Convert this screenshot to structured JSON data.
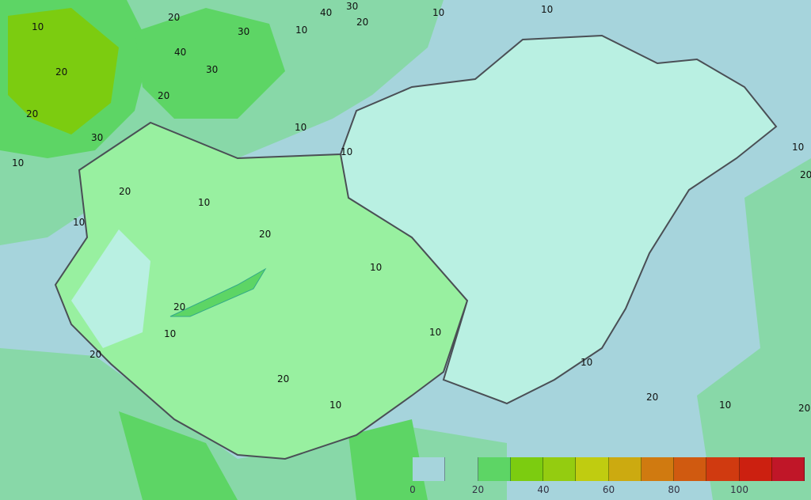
{
  "map": {
    "colors": {
      "background": "#a6d4dc",
      "hungary_east": "#b9f0e2",
      "hungary_west": "#98f0a0",
      "band_10_20": "#88d8a8",
      "band_20_30": "#5dd565",
      "band_30_40": "#7ccc10",
      "border": "#4a4f55"
    },
    "contour_labels": [
      "10",
      "20",
      "30",
      "40",
      "10",
      "20",
      "30",
      "20",
      "10",
      "30",
      "10",
      "20",
      "10",
      "20",
      "10",
      "20",
      "10",
      "20",
      "10",
      "10",
      "10",
      "20",
      "10",
      "20",
      "10",
      "20",
      "10",
      "10",
      "20",
      "10",
      "20",
      "40",
      "30",
      "20",
      "10"
    ]
  },
  "legend": {
    "bins": [
      {
        "from": 0,
        "to": 10,
        "color": "#a6d4dc"
      },
      {
        "from": 10,
        "to": 20,
        "color": "#88d8a8"
      },
      {
        "from": 20,
        "to": 30,
        "color": "#5dd565"
      },
      {
        "from": 30,
        "to": 40,
        "color": "#7ccc10"
      },
      {
        "from": 40,
        "to": 50,
        "color": "#94cc10"
      },
      {
        "from": 50,
        "to": 60,
        "color": "#c0cc10"
      },
      {
        "from": 60,
        "to": 70,
        "color": "#ccaa10"
      },
      {
        "from": 70,
        "to": 80,
        "color": "#d07a10"
      },
      {
        "from": 80,
        "to": 90,
        "color": "#d05a10"
      },
      {
        "from": 90,
        "to": 100,
        "color": "#d03a10"
      },
      {
        "from": 100,
        "to": 110,
        "color": "#cc2010"
      },
      {
        "from": 110,
        "to": 120,
        "color": "#c01628"
      }
    ],
    "tick_labels": [
      "0",
      "20",
      "40",
      "60",
      "80",
      "100"
    ]
  }
}
